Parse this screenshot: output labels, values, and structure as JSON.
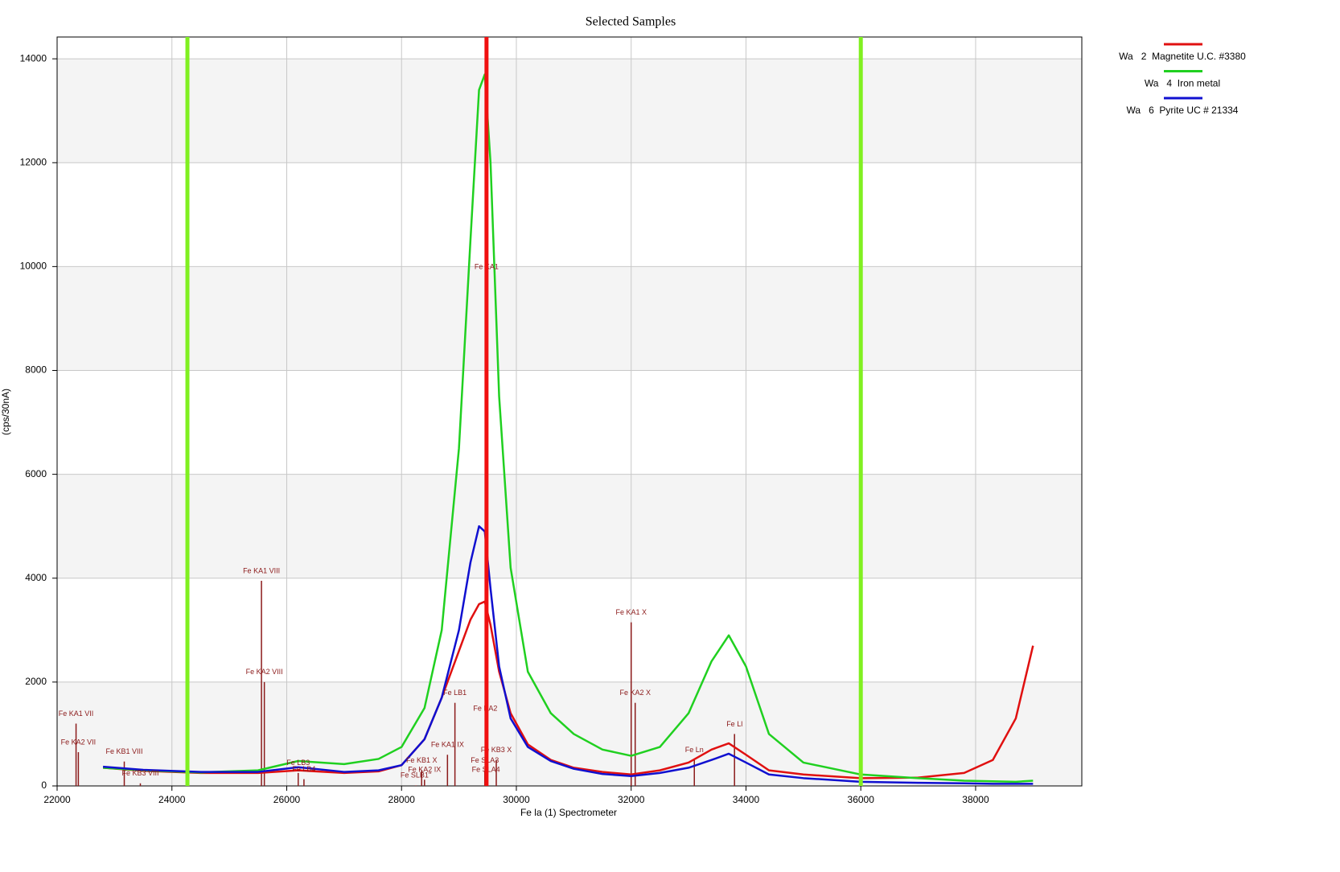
{
  "chart_data": {
    "type": "line",
    "title": "Selected Samples",
    "x_label": "Fe la (1) Spectrometer",
    "y_label": "(cps/30nA)",
    "x": [
      22800,
      23500,
      24500,
      25500,
      26200,
      27000,
      27600,
      28000,
      28400,
      28700,
      29000,
      29200,
      29350,
      29450,
      29550,
      29700,
      29900,
      30200,
      30600,
      31000,
      31500,
      32000,
      32500,
      33000,
      33400,
      33700,
      34000,
      34400,
      35000,
      36000,
      37000,
      37800,
      38300,
      38700,
      39000
    ],
    "series": [
      {
        "name": "Wa   2  Magnetite U.C. #3380",
        "color": "#e01010",
        "values": [
          350,
          290,
          250,
          250,
          300,
          250,
          280,
          400,
          900,
          1700,
          2600,
          3200,
          3500,
          3550,
          3100,
          2200,
          1400,
          800,
          500,
          350,
          270,
          220,
          300,
          450,
          700,
          820,
          600,
          300,
          220,
          150,
          160,
          250,
          500,
          1300,
          2700
        ]
      },
      {
        "name": "Wa   4  Iron metal",
        "color": "#20d020",
        "values": [
          350,
          300,
          260,
          300,
          480,
          420,
          520,
          750,
          1500,
          3000,
          6500,
          10500,
          13400,
          13700,
          12000,
          7500,
          4200,
          2200,
          1400,
          1000,
          700,
          580,
          750,
          1400,
          2400,
          2900,
          2300,
          1000,
          450,
          220,
          150,
          100,
          90,
          80,
          100
        ]
      },
      {
        "name": "Wa   6  Pyrite UC # 21334",
        "color": "#1010d0",
        "values": [
          370,
          310,
          270,
          270,
          360,
          270,
          300,
          400,
          900,
          1700,
          3000,
          4300,
          5000,
          4900,
          3800,
          2300,
          1300,
          750,
          480,
          330,
          230,
          190,
          250,
          350,
          500,
          620,
          450,
          220,
          150,
          80,
          60,
          50,
          40,
          40,
          40
        ]
      }
    ],
    "markers": [
      {
        "x": 24270,
        "color": "#80f020"
      },
      {
        "x": 29480,
        "color": "#f01010"
      },
      {
        "x": 36000,
        "color": "#80f020"
      }
    ],
    "stick_color": "#8b1a1a",
    "lines": [
      {
        "name": "Fe KA1 VII",
        "x": 22330,
        "height": 1200
      },
      {
        "name": "Fe KA2 VII",
        "x": 22370,
        "height": 650
      },
      {
        "name": "Fe KB1 VIII",
        "x": 23170,
        "height": 470
      },
      {
        "name": "Fe KB3 VIII",
        "x": 23450,
        "height": 50
      },
      {
        "name": "Fe KA1 VIII",
        "x": 25560,
        "height": 3950
      },
      {
        "name": "Fe KA2 VIII",
        "x": 25610,
        "height": 2000
      },
      {
        "name": "Fe LB3",
        "x": 26200,
        "height": 250
      },
      {
        "name": "Fe LB4",
        "x": 26300,
        "height": 130
      },
      {
        "name": "Fe KB1 X",
        "x": 28350,
        "height": 300
      },
      {
        "name": "Fe KA2 IX",
        "x": 28400,
        "height": 120
      },
      {
        "name": "Fe SLB1''",
        "x": 28250,
        "height": 10
      },
      {
        "name": "Fe KA1 IX",
        "x": 28800,
        "height": 600
      },
      {
        "name": "Fe LB1",
        "x": 28930,
        "height": 1600
      },
      {
        "name": "Fe KA1",
        "x": 29480,
        "height": 9800
      },
      {
        "name": "Fe KA2",
        "x": 29460,
        "height": 1300
      },
      {
        "name": "Fe KB3 X",
        "x": 29650,
        "height": 500
      },
      {
        "name": "Fe SLA3",
        "x": 29450,
        "height": 300
      },
      {
        "name": "Fe SLA4",
        "x": 29470,
        "height": 120
      },
      {
        "name": "Fe KA1 X",
        "x": 32000,
        "height": 3150
      },
      {
        "name": "Fe KA2 X",
        "x": 32070,
        "height": 1600
      },
      {
        "name": "Fe Ln",
        "x": 33100,
        "height": 500
      },
      {
        "name": "Fe Ll",
        "x": 33800,
        "height": 1000
      }
    ],
    "xlim": [
      22000,
      39850
    ],
    "ylim": [
      0,
      14420
    ],
    "xticks": [
      22000,
      24000,
      26000,
      28000,
      30000,
      32000,
      34000,
      36000,
      38000
    ],
    "yticks": [
      0,
      2000,
      4000,
      6000,
      8000,
      10000,
      12000,
      14000
    ],
    "grid": true,
    "legend": "outside-right"
  }
}
